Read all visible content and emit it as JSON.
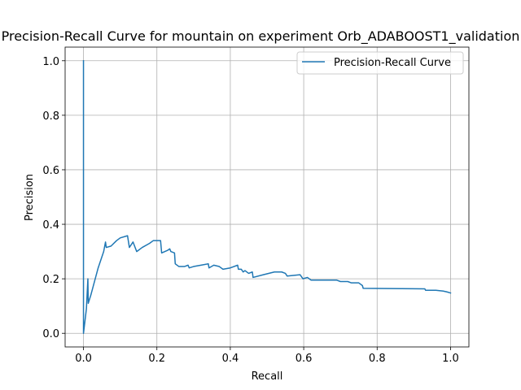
{
  "chart_data": {
    "type": "line",
    "title": "Precision-Recall Curve for mountain on experiment Orb_ADABOOST1_validation",
    "xlabel": "Recall",
    "ylabel": "Precision",
    "xlim": [
      -0.05,
      1.05
    ],
    "ylim": [
      -0.05,
      1.05
    ],
    "xticks": [
      0.0,
      0.2,
      0.4,
      0.6,
      0.8,
      1.0
    ],
    "yticks": [
      0.0,
      0.2,
      0.4,
      0.6,
      0.8,
      1.0
    ],
    "xtick_labels": [
      "0.0",
      "0.2",
      "0.4",
      "0.6",
      "0.8",
      "1.0"
    ],
    "ytick_labels": [
      "0.0",
      "0.2",
      "0.4",
      "0.6",
      "0.8",
      "1.0"
    ],
    "grid": true,
    "legend_position": "top-right",
    "series": [
      {
        "name": "Precision-Recall Curve",
        "color": "#1f77b4",
        "points": [
          [
            0.0,
            1.0
          ],
          [
            0.0,
            0.0
          ],
          [
            0.008,
            0.09
          ],
          [
            0.012,
            0.2
          ],
          [
            0.013,
            0.11
          ],
          [
            0.02,
            0.14
          ],
          [
            0.04,
            0.24
          ],
          [
            0.055,
            0.3
          ],
          [
            0.06,
            0.335
          ],
          [
            0.062,
            0.315
          ],
          [
            0.075,
            0.32
          ],
          [
            0.09,
            0.34
          ],
          [
            0.1,
            0.35
          ],
          [
            0.12,
            0.358
          ],
          [
            0.125,
            0.315
          ],
          [
            0.135,
            0.335
          ],
          [
            0.145,
            0.3
          ],
          [
            0.16,
            0.315
          ],
          [
            0.18,
            0.33
          ],
          [
            0.19,
            0.34
          ],
          [
            0.21,
            0.34
          ],
          [
            0.213,
            0.295
          ],
          [
            0.23,
            0.305
          ],
          [
            0.235,
            0.31
          ],
          [
            0.238,
            0.3
          ],
          [
            0.248,
            0.295
          ],
          [
            0.25,
            0.255
          ],
          [
            0.26,
            0.245
          ],
          [
            0.275,
            0.245
          ],
          [
            0.285,
            0.25
          ],
          [
            0.288,
            0.24
          ],
          [
            0.3,
            0.245
          ],
          [
            0.32,
            0.25
          ],
          [
            0.34,
            0.255
          ],
          [
            0.342,
            0.24
          ],
          [
            0.355,
            0.25
          ],
          [
            0.37,
            0.245
          ],
          [
            0.38,
            0.235
          ],
          [
            0.4,
            0.24
          ],
          [
            0.42,
            0.25
          ],
          [
            0.422,
            0.235
          ],
          [
            0.43,
            0.235
          ],
          [
            0.435,
            0.225
          ],
          [
            0.44,
            0.23
          ],
          [
            0.45,
            0.22
          ],
          [
            0.46,
            0.225
          ],
          [
            0.462,
            0.205
          ],
          [
            0.49,
            0.215
          ],
          [
            0.52,
            0.225
          ],
          [
            0.54,
            0.225
          ],
          [
            0.55,
            0.22
          ],
          [
            0.555,
            0.21
          ],
          [
            0.59,
            0.215
          ],
          [
            0.598,
            0.2
          ],
          [
            0.61,
            0.205
          ],
          [
            0.62,
            0.195
          ],
          [
            0.69,
            0.195
          ],
          [
            0.7,
            0.19
          ],
          [
            0.72,
            0.19
          ],
          [
            0.73,
            0.185
          ],
          [
            0.75,
            0.185
          ],
          [
            0.76,
            0.175
          ],
          [
            0.762,
            0.165
          ],
          [
            0.93,
            0.163
          ],
          [
            0.932,
            0.158
          ],
          [
            0.96,
            0.158
          ],
          [
            0.98,
            0.155
          ],
          [
            0.99,
            0.152
          ],
          [
            1.0,
            0.148
          ]
        ]
      }
    ]
  }
}
